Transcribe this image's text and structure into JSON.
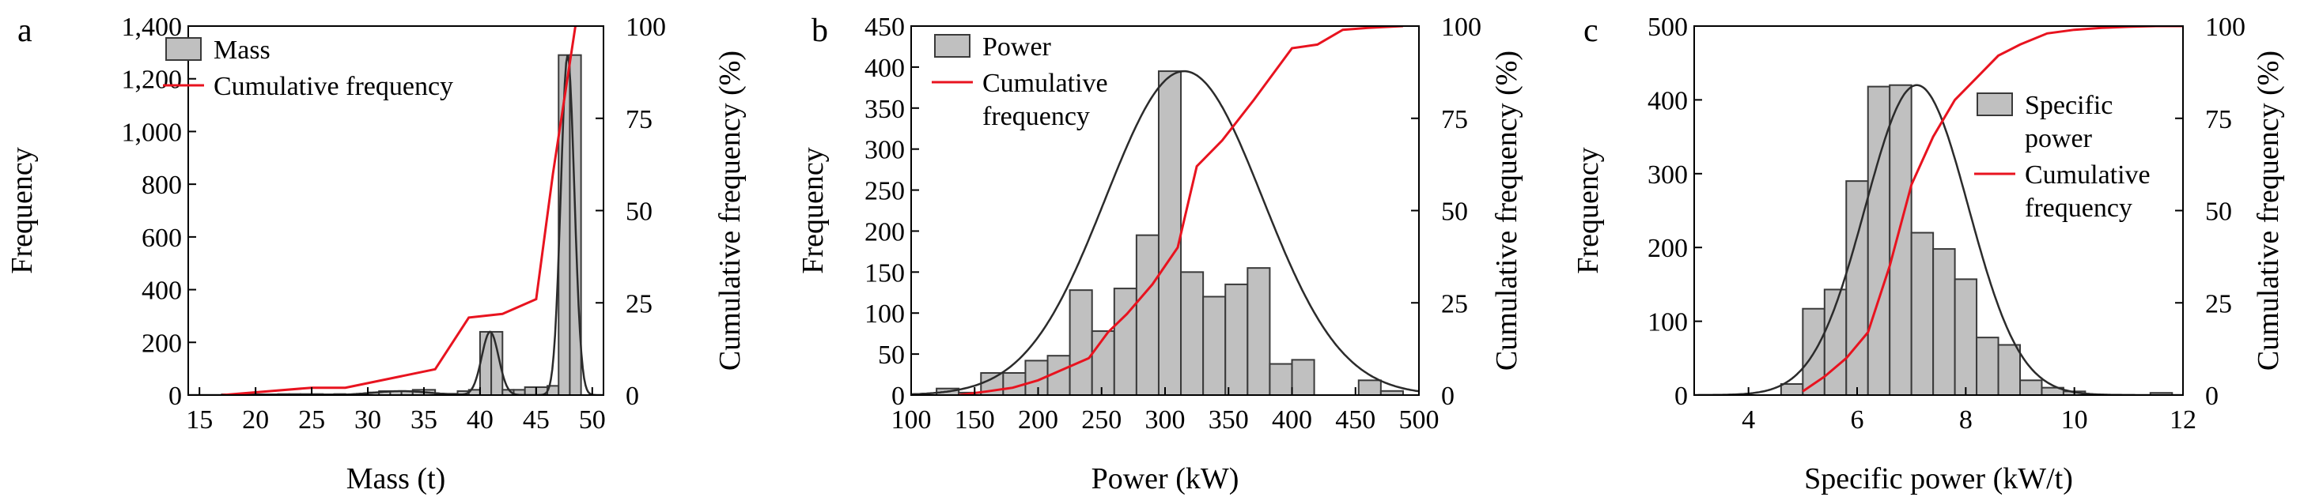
{
  "figure": {
    "colors": {
      "bar_fill": "#c0c0c0",
      "bar_stroke": "#3a3a3a",
      "cumulative_line": "#e8131f",
      "fit_curve": "#2b2b2b"
    }
  },
  "chart_data": [
    {
      "panel": "a",
      "type": "bar",
      "bar_series_name": "Mass",
      "line_series_name": "Cumulative frequency",
      "xlabel": "Mass (t)",
      "ylabel": "Frequency",
      "y2label": "Cumulative frequency (%)",
      "xlim": [
        14,
        51
      ],
      "ylim": [
        0,
        1400
      ],
      "y2lim": [
        0,
        100
      ],
      "xticks": [
        15,
        20,
        25,
        30,
        35,
        40,
        45,
        50
      ],
      "xtick_labels": [
        "15",
        "20",
        "25",
        "30",
        "35",
        "40",
        "45",
        "50"
      ],
      "yticks": [
        0,
        200,
        400,
        600,
        800,
        1000,
        1200,
        1400
      ],
      "ytick_labels": [
        "0",
        "200",
        "400",
        "600",
        "800",
        "1,000",
        "1,200",
        "1,400"
      ],
      "y2ticks": [
        0,
        25,
        50,
        75,
        100
      ],
      "y2tick_labels": [
        "0",
        "25",
        "50",
        "75",
        "100"
      ],
      "bin_width": 1,
      "bins": [
        17,
        18,
        19,
        20,
        21,
        22,
        23,
        24,
        25,
        26,
        27,
        28,
        29,
        30,
        31,
        32,
        33,
        34,
        35,
        36,
        37,
        38,
        39,
        40,
        41,
        42,
        43,
        44,
        45,
        46,
        47,
        48
      ],
      "values": [
        3,
        3,
        4,
        3,
        3,
        4,
        4,
        4,
        4,
        3,
        4,
        3,
        5,
        10,
        15,
        15,
        15,
        20,
        20,
        5,
        5,
        15,
        20,
        240,
        240,
        20,
        20,
        30,
        30,
        35,
        1290,
        1290
      ],
      "cumulative": {
        "x": [
          17,
          25,
          28,
          36,
          39,
          42,
          45,
          46.5,
          48.5
        ],
        "y": [
          0,
          2,
          2,
          7,
          21,
          22,
          26,
          60,
          100
        ]
      },
      "fit_curve": "bimodal: small peak ~240 at 41 t, main peak ~1290 at 47.8 t",
      "legend_position": "top-left"
    },
    {
      "panel": "b",
      "type": "bar",
      "bar_series_name": "Power",
      "line_series_name": "Cumulative frequency",
      "line_series_lines": [
        "Cumulative",
        "frequency"
      ],
      "xlabel": "Power (kW)",
      "ylabel": "Frequency",
      "y2label": "Cumulative frequency (%)",
      "xlim": [
        100,
        500
      ],
      "ylim": [
        0,
        450
      ],
      "y2lim": [
        0,
        100
      ],
      "xticks": [
        100,
        150,
        200,
        250,
        300,
        350,
        400,
        450,
        500
      ],
      "xtick_labels": [
        "100",
        "150",
        "200",
        "250",
        "300",
        "350",
        "400",
        "450",
        "500"
      ],
      "yticks": [
        0,
        50,
        100,
        150,
        200,
        250,
        300,
        350,
        400,
        450
      ],
      "ytick_labels": [
        "0",
        "50",
        "100",
        "150",
        "200",
        "250",
        "300",
        "350",
        "400",
        "450"
      ],
      "y2ticks": [
        0,
        25,
        50,
        75,
        100
      ],
      "y2tick_labels": [
        "0",
        "25",
        "50",
        "75",
        "100"
      ],
      "bin_width": 17.5,
      "bins": [
        120,
        137.5,
        155,
        172.5,
        190,
        207.5,
        225,
        242.5,
        260,
        277.5,
        295,
        312.5,
        330,
        347.5,
        365,
        382.5,
        400,
        417.5,
        435,
        452.5,
        470,
        487.5
      ],
      "values": [
        8,
        3,
        27,
        27,
        42,
        48,
        128,
        78,
        130,
        195,
        395,
        150,
        120,
        135,
        155,
        38,
        43,
        0,
        0,
        18,
        5,
        0
      ],
      "cumulative": {
        "x": [
          137.5,
          160,
          180,
          200,
          220,
          240,
          255,
          270,
          290,
          310,
          325,
          345,
          370,
          400,
          420,
          440,
          460,
          487.5
        ],
        "y": [
          0,
          1,
          2,
          4,
          7,
          10,
          17,
          22,
          30,
          40,
          62,
          69,
          80,
          94,
          95,
          99,
          99.5,
          100
        ]
      },
      "fit_curve": "normal: peak ~395 at 315 kW",
      "legend_position": "top-left"
    },
    {
      "panel": "c",
      "type": "bar",
      "bar_series_name": "Specific power",
      "bar_series_lines": [
        "Specific",
        "power"
      ],
      "line_series_name": "Cumulative frequency",
      "line_series_lines": [
        "Cumulative",
        "frequency"
      ],
      "xlabel": "Specific power (kW/t)",
      "ylabel": "Frequency",
      "y2label": "Cumulative frequency (%)",
      "xlim": [
        3,
        12
      ],
      "ylim": [
        0,
        500
      ],
      "y2lim": [
        0,
        100
      ],
      "xticks": [
        4,
        6,
        8,
        10,
        12
      ],
      "xtick_labels": [
        "4",
        "6",
        "8",
        "10",
        "12"
      ],
      "yticks": [
        0,
        100,
        200,
        300,
        400,
        500
      ],
      "ytick_labels": [
        "0",
        "100",
        "200",
        "300",
        "400",
        "500"
      ],
      "y2ticks": [
        0,
        25,
        50,
        75,
        100
      ],
      "y2tick_labels": [
        "0",
        "25",
        "50",
        "75",
        "100"
      ],
      "bin_width": 0.4,
      "bins": [
        4.6,
        5.0,
        5.4,
        5.8,
        6.2,
        6.6,
        7.0,
        7.4,
        7.8,
        8.2,
        8.6,
        9.0,
        9.4,
        9.8,
        10.2,
        10.6,
        11.0,
        11.4
      ],
      "values": [
        15,
        117,
        143,
        290,
        418,
        420,
        220,
        198,
        157,
        78,
        68,
        20,
        10,
        5,
        0,
        0,
        0,
        3
      ],
      "cumulative": {
        "x": [
          5.0,
          5.4,
          5.8,
          6.2,
          6.6,
          7.0,
          7.4,
          7.8,
          8.2,
          8.6,
          9.0,
          9.5,
          10.0,
          10.5,
          11.0,
          11.5,
          12.0
        ],
        "y": [
          1,
          5,
          10,
          17,
          35,
          57,
          70,
          80,
          86,
          92,
          95,
          98,
          99,
          99.5,
          99.8,
          100,
          100
        ]
      },
      "fit_curve": "normal: peak ~420 at 7.1 kW/t",
      "legend_position": "top-right"
    }
  ]
}
